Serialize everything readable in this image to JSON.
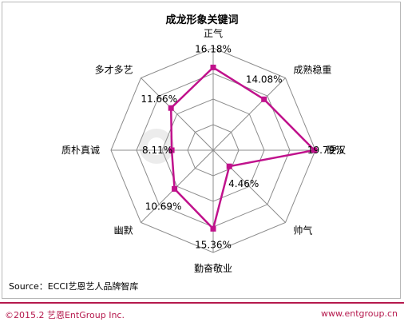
{
  "chart_data": {
    "type": "radar",
    "title": "成龙形象关键词",
    "categories": [
      "正气",
      "成熟稳重",
      "硬汉",
      "帅气",
      "勤奋敬业",
      "幽默",
      "质朴真诚",
      "多才多艺"
    ],
    "values": [
      16.18,
      14.08,
      19.79,
      4.46,
      15.36,
      10.69,
      8.11,
      11.66
    ],
    "value_labels": [
      "16.18%",
      "14.08%",
      "19.79%",
      "4.46%",
      "15.36%",
      "10.69%",
      "8.11%",
      "11.66%"
    ],
    "rmax": 20,
    "grid_levels": 4,
    "series_color": "#c0128c",
    "legend": "none"
  },
  "source": "Source：ECCI艺恩艺人品牌智库",
  "footer": {
    "copyright": "©2015.2 艺恩EntGroup Inc.",
    "website": "www.entgroup.cn"
  },
  "colors": {
    "brand": "#b5194d",
    "grid": "#8c8c8c",
    "series": "#c0128c"
  }
}
